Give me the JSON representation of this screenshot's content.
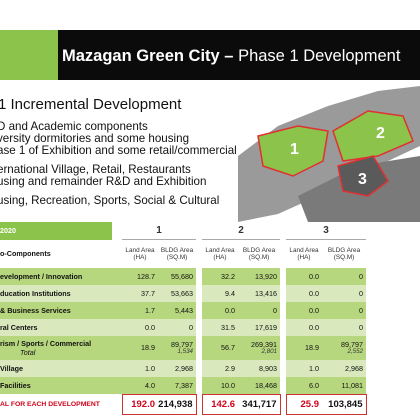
{
  "slide": {
    "title_bold": "Mazagan Green City –",
    "title_rest": " Phase 1 Development"
  },
  "left": {
    "heading": "1 Incremental Development",
    "bullets": [
      "D and Academic components",
      "versity dormitories and some housing",
      "ase 1 of Exhibition and some retail/commercial",
      "ernational Village, Retail, Restaurants",
      "using and remainder R&D and Exhibition",
      "using, Recreation, Sports, Social & Cultural"
    ]
  },
  "map": {
    "labels": [
      "1",
      "2",
      "3"
    ],
    "colors": {
      "zone": "#8cc34a",
      "outline": "#e03030",
      "terrain": "#8a8a8a"
    }
  },
  "table": {
    "year_label": "2020",
    "components_label": "o-Components",
    "phases": [
      "1",
      "2",
      "3"
    ],
    "sub_headers": [
      "Land Area (HA)",
      "BLDG Area (SQ.M)"
    ],
    "rows": [
      {
        "label": "evelopment / Innovation",
        "values": [
          "128.7",
          "55,680",
          "32.2",
          "13,920",
          "0.0",
          "0"
        ],
        "shade": "g1"
      },
      {
        "label": "ducation Institutions",
        "values": [
          "37.7",
          "53,663",
          "9.4",
          "13,416",
          "0.0",
          "0"
        ],
        "shade": "g2"
      },
      {
        "label": "& Business Services",
        "values": [
          "1.7",
          "5,443",
          "0.0",
          "0",
          "0.0",
          "0"
        ],
        "shade": "g1"
      },
      {
        "label": "ral Centers",
        "values": [
          "0.0",
          "0",
          "31.5",
          "17,619",
          "0.0",
          "0"
        ],
        "shade": "g2"
      },
      {
        "label": "rism / Sports / Commercial",
        "sub_label": "Total",
        "values": [
          "18.9",
          "89,797",
          "56.7",
          "269,391",
          "18.9",
          "89,797"
        ],
        "extra": [
          "1,534",
          "2,801",
          "2,552"
        ],
        "shade": "g1"
      },
      {
        "label": "Village",
        "values": [
          "1.0",
          "2,968",
          "2.9",
          "8,903",
          "1.0",
          "2,968"
        ],
        "shade": "g2"
      },
      {
        "label": "Facilities",
        "values": [
          "4.0",
          "7,387",
          "10.0",
          "18,468",
          "6.0",
          "11,081"
        ],
        "shade": "g1"
      }
    ],
    "total_label": "AL FOR EACH DEVELOPMENT",
    "totals": [
      "192.0",
      "214,938",
      "142.6",
      "341,717",
      "25.9",
      "103,845"
    ]
  }
}
